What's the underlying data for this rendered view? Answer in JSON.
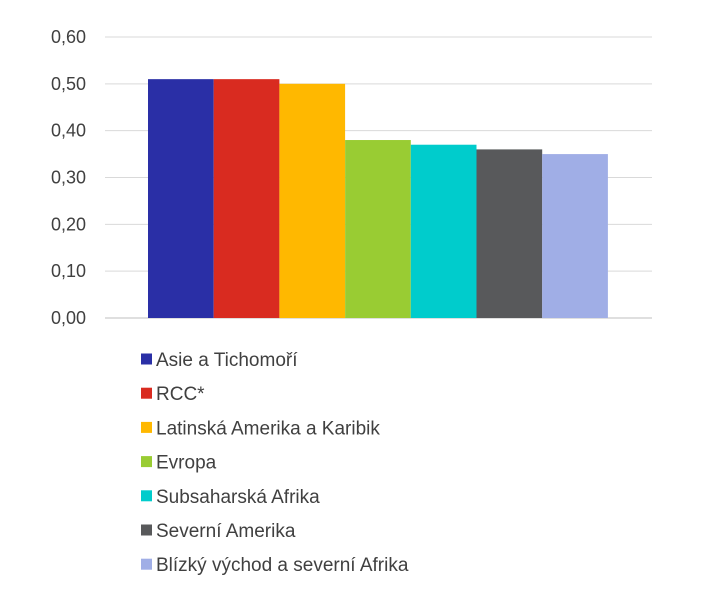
{
  "chart_data": {
    "type": "bar",
    "title": "",
    "xlabel": "",
    "ylabel": "",
    "ylim": [
      0,
      0.6
    ],
    "yticks": [
      "0,00",
      "0,10",
      "0,20",
      "0,30",
      "0,40",
      "0,50",
      "0,60"
    ],
    "grid": true,
    "legend_position": "bottom",
    "categories": [
      "Asie a Tichomoří",
      "RCC*",
      "Latinská Amerika a Karibik",
      "Evropa",
      "Subsaharská Afrika",
      "Severní Amerika",
      "Blízký východ a severní Afrika"
    ],
    "values": [
      0.51,
      0.51,
      0.5,
      0.38,
      0.37,
      0.36,
      0.35
    ],
    "colors": [
      "#2a2fa6",
      "#d92b20",
      "#ffb800",
      "#99cc33",
      "#00cccc",
      "#58595b",
      "#a0aee6"
    ]
  }
}
